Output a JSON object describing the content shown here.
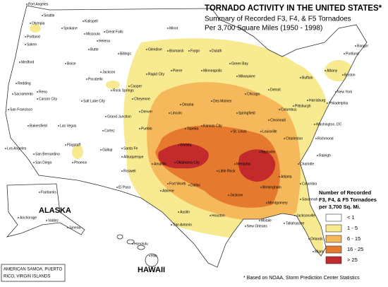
{
  "title": "TORNADO ACTIVITY IN THE UNITED STATES*",
  "subtitle": [
    "Summary of Recorded F3, F4, & F5 Tornadoes",
    "Per 3,700 Square Miles (1950 - 1998)"
  ],
  "legend": {
    "title": [
      "Number of Recorded",
      "F3, F4, & F5 Tornadoes",
      "per 3,700 Sq. Mi."
    ],
    "items": [
      {
        "label": "< 1",
        "color": "#ffffff"
      },
      {
        "label": "1 - 5",
        "color": "#f8ea90"
      },
      {
        "label": "6 - 15",
        "color": "#f5b95c"
      },
      {
        "label": "16 - 25",
        "color": "#e57a2e"
      },
      {
        "label": "> 25",
        "color": "#c22a2c"
      }
    ]
  },
  "footnote": "* Based on NOAA, Storm Prediction Center Statistics",
  "insets": {
    "alaska": "ALASKA",
    "hawaii": "HAWAII",
    "territories": [
      "AMERICAN SAMOA, PUERTO",
      "RICO, VIRGIN ISLANDS"
    ]
  },
  "cities": [
    "Port Angeles",
    "Seattle",
    "Olympia",
    "Spokane",
    "Portland",
    "Salem",
    "Kalispell",
    "Great Falls",
    "Missoula",
    "Helena",
    "Butte",
    "Billings",
    "Glendive",
    "Minot",
    "Bismarck",
    "Fargo",
    "Duluth",
    "Medford",
    "Boise",
    "Jackson",
    "Pocatello",
    "Rapid City",
    "Pierre",
    "Casper",
    "Redding",
    "Reno",
    "Carson City",
    "Sacramento",
    "San Francisco",
    "Salt Lake City",
    "Rock Springs",
    "Cheyenne",
    "Denver",
    "Grand Junction",
    "Pueblo",
    "Cortez",
    "Bakersfield",
    "Las Vegas",
    "Los Angeles",
    "San Bernardino",
    "San Diego",
    "Flagstaff",
    "Phoenix",
    "Gallup",
    "Santa Fe",
    "Albuquerque",
    "Roswell",
    "El Paso",
    "Amarillo",
    "Wichita",
    "Oklahoma City",
    "Fort Worth",
    "Dallas",
    "Abilene",
    "Austin",
    "Houston",
    "San Antonio",
    "Omaha",
    "Lincoln",
    "Des Moines",
    "Minneapolis",
    "Kansas City",
    "Topeka",
    "St. Louis",
    "Springfield",
    "Chicago",
    "Milwaukee",
    "Green Bay",
    "Detroit",
    "Memphis",
    "Nashville",
    "Little Rock",
    "Jackson",
    "Birmingham",
    "Montgomery",
    "Atlanta",
    "New Orleans",
    "Mobile",
    "Tallahassee",
    "Orlando",
    "Miami",
    "Louisville",
    "Cincinnati",
    "Columbus",
    "Pittsburgh",
    "Buffalo",
    "Albany",
    "Boston",
    "New York",
    "Philadelphia",
    "Washington, DC",
    "Richmond",
    "Charleston",
    "Raleigh",
    "Charlotte",
    "Columbia",
    "Savannah",
    "Jacksonville",
    "Portland",
    "Bangor",
    "Harrisburg",
    "Fairbanks",
    "Anchorage",
    "Valdez",
    "Juneau",
    "Honolulu",
    "Hilo"
  ]
}
